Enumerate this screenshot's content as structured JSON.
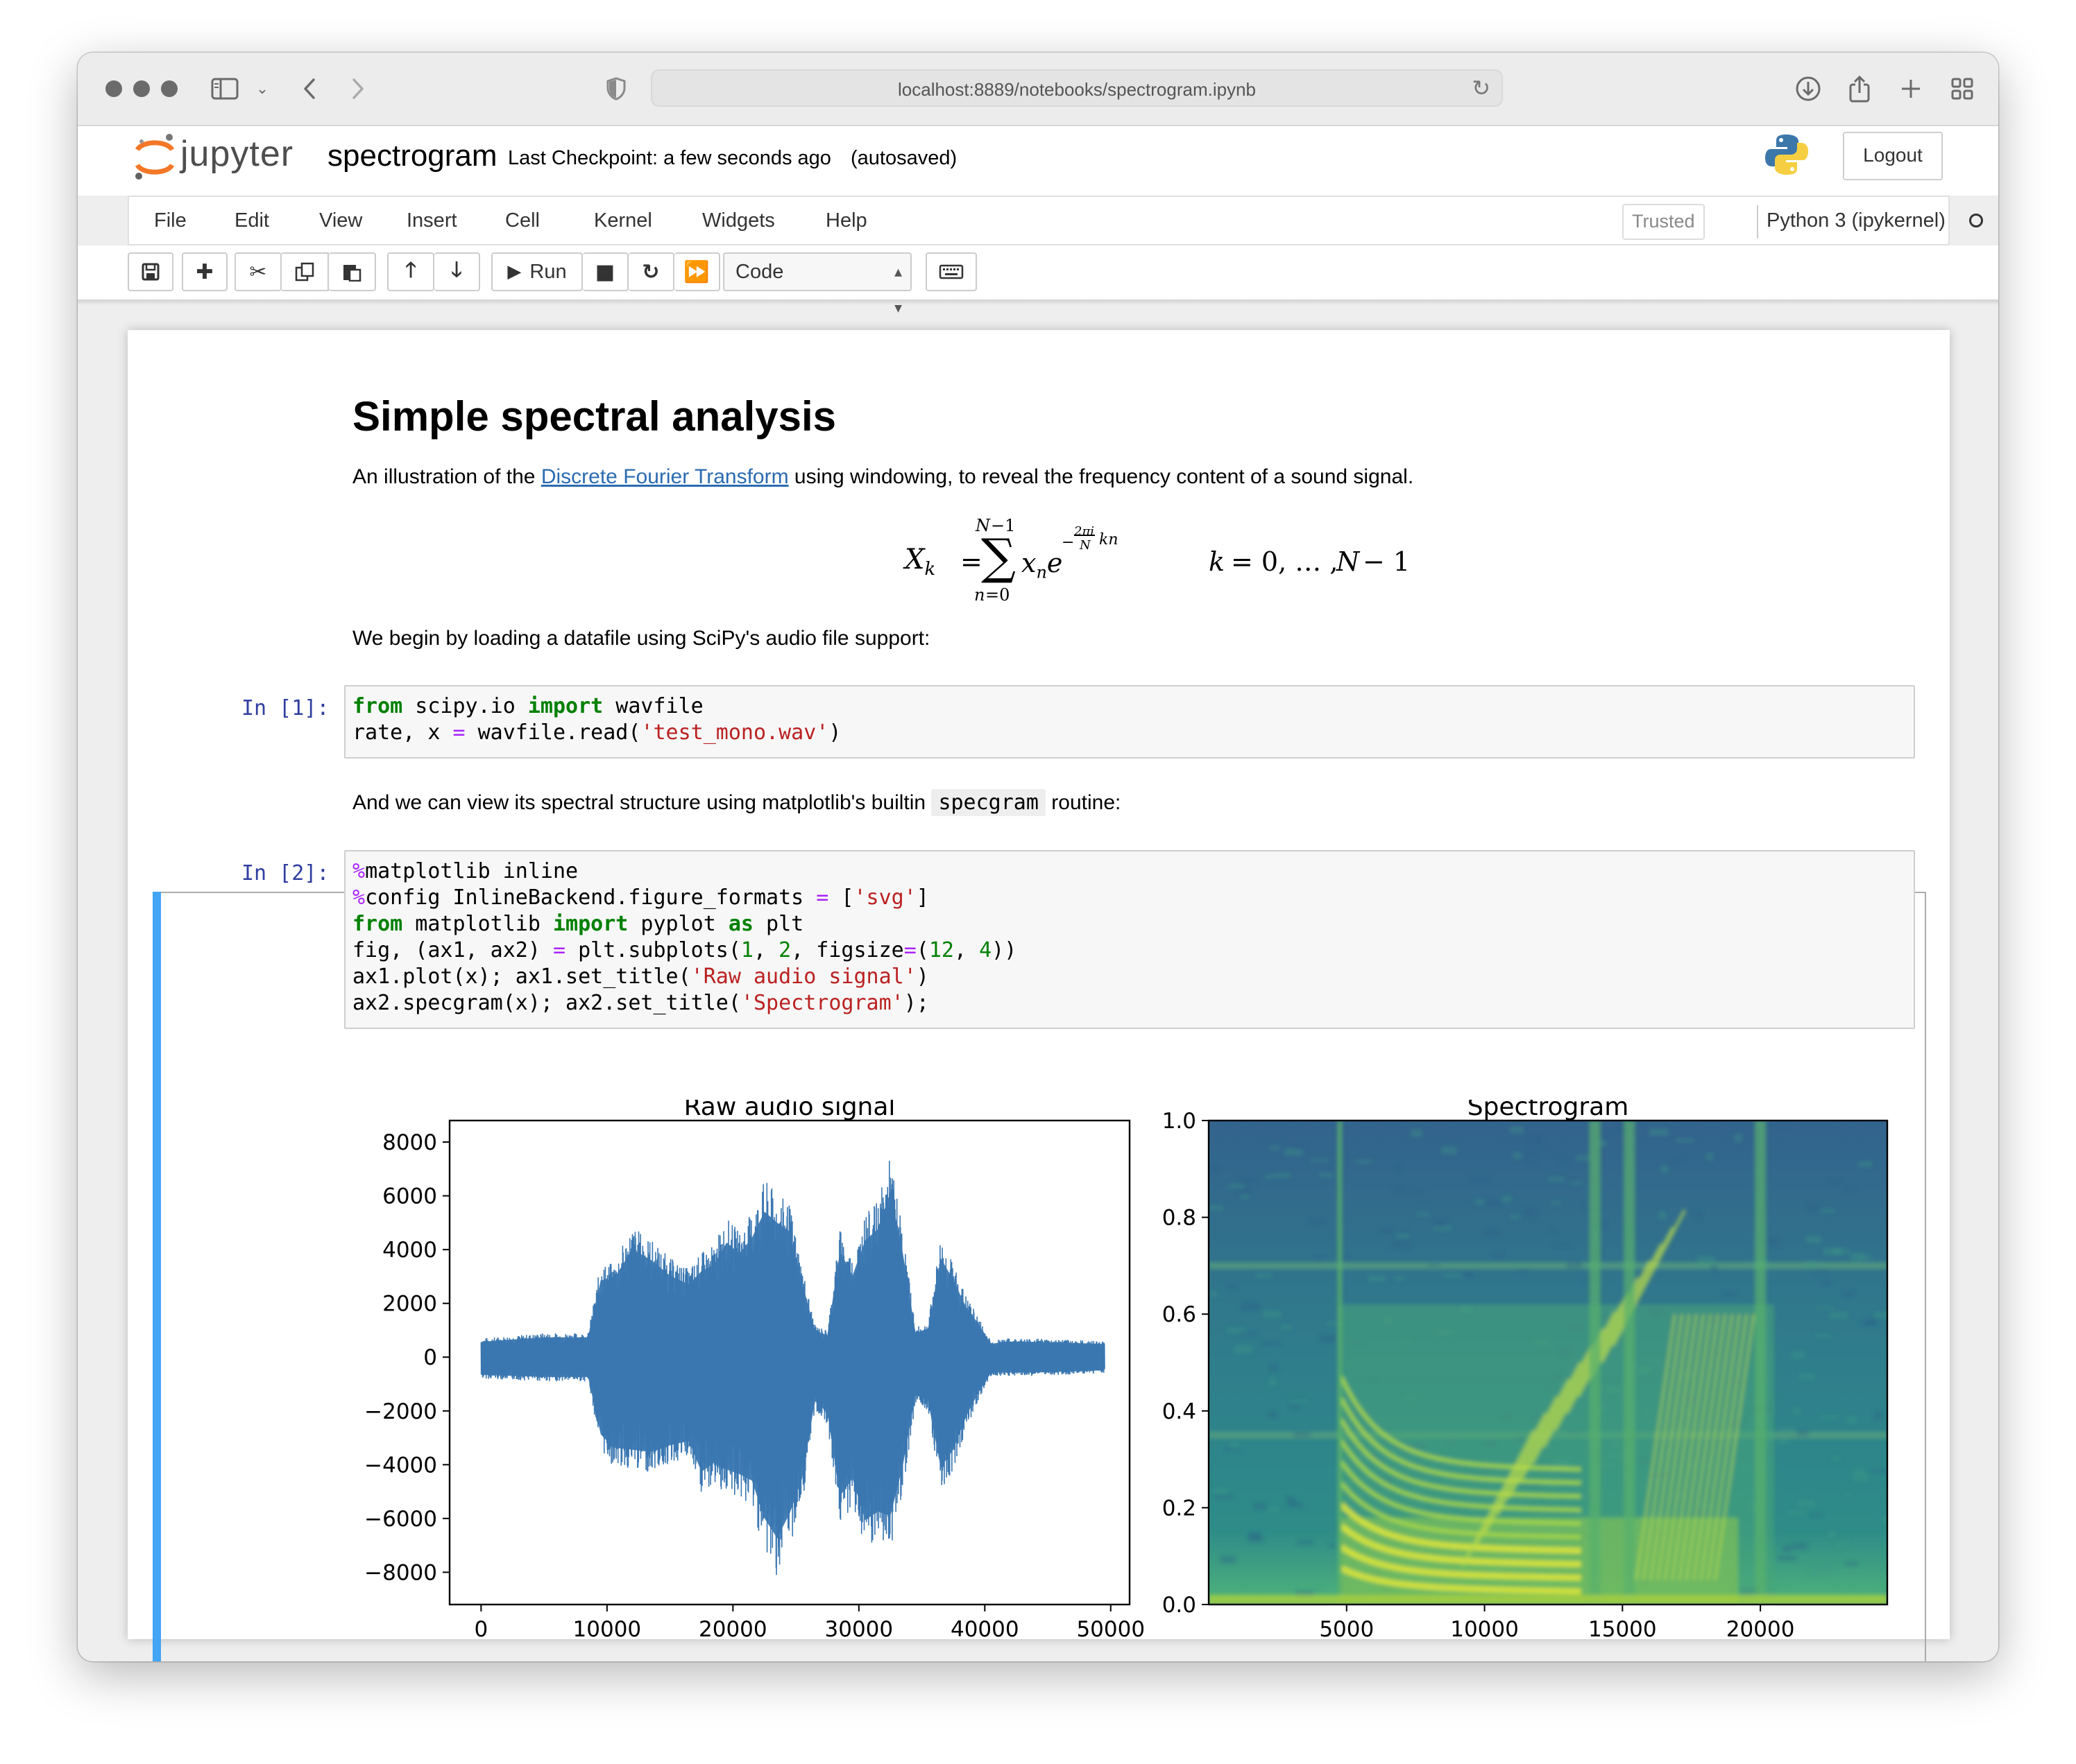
{
  "browser": {
    "url": "localhost:8889/notebooks/spectrogram.ipynb"
  },
  "header": {
    "logo_text": "jupyter",
    "notebook_name": "spectrogram",
    "checkpoint": "Last Checkpoint: a few seconds ago",
    "autosaved": "(autosaved)",
    "logout_label": "Logout"
  },
  "menu": {
    "items": [
      "File",
      "Edit",
      "View",
      "Insert",
      "Cell",
      "Kernel",
      "Widgets",
      "Help"
    ],
    "trusted": "Trusted",
    "kernel": "Python 3 (ipykernel)"
  },
  "toolbar": {
    "run_label": "Run",
    "cell_type": "Code"
  },
  "notebook": {
    "heading": "Simple spectral analysis",
    "intro_before": "An illustration of the ",
    "intro_link": "Discrete Fourier Transform",
    "intro_after": " using windowing, to reveal the frequency content of a sound signal.",
    "load_text": "We begin by loading a datafile using SciPy's audio file support:",
    "view_before": "And we can view its spectral structure using matplotlib's builtin ",
    "view_code": "specgram",
    "view_after": " routine:",
    "prompt1": "In [1]:",
    "prompt2": "In [2]:"
  },
  "chart_data": [
    {
      "type": "line",
      "title": "Raw audio signal",
      "xlabel": "",
      "ylabel": "",
      "xlim": [
        -2500,
        51500
      ],
      "ylim": [
        -9200,
        8800
      ],
      "xticks": [
        0,
        10000,
        20000,
        30000,
        40000,
        50000
      ],
      "yticks": [
        -8000,
        -6000,
        -4000,
        -2000,
        0,
        2000,
        4000,
        6000,
        8000
      ],
      "xtick_labels": [
        "0",
        "10000",
        "20000",
        "30000",
        "40000",
        "50000"
      ],
      "ytick_labels": [
        "−8000",
        "−6000",
        "−4000",
        "−2000",
        "0",
        "2000",
        "4000",
        "6000",
        "8000"
      ],
      "color": "#3a77b1",
      "envelope": {
        "x": [
          0,
          5000,
          8500,
          9500,
          10500,
          12000,
          13500,
          15000,
          16500,
          17500,
          18500,
          19500,
          20500,
          21500,
          22500,
          23500,
          24500,
          25500,
          26500,
          27500,
          28500,
          29500,
          30500,
          31500,
          32500,
          33500,
          34500,
          35500,
          36500,
          37500,
          38500,
          39500,
          40500,
          41500,
          44000,
          49500
        ],
        "upper": [
          700,
          900,
          900,
          3500,
          3500,
          4900,
          4400,
          3700,
          3300,
          3900,
          4200,
          5200,
          4700,
          5400,
          6600,
          6100,
          5700,
          3400,
          1200,
          1000,
          4800,
          3700,
          5300,
          5800,
          7500,
          4700,
          1100,
          1300,
          4500,
          3500,
          2300,
          1500,
          600,
          700,
          700,
          600
        ],
        "lower": [
          -800,
          -900,
          -900,
          -3500,
          -4100,
          -4200,
          -4300,
          -4000,
          -3800,
          -5200,
          -4800,
          -5100,
          -5300,
          -5600,
          -7300,
          -8200,
          -7100,
          -5500,
          -2000,
          -2500,
          -6300,
          -5500,
          -7400,
          -7000,
          -7200,
          -4900,
          -1700,
          -2000,
          -5000,
          -4200,
          -2700,
          -1600,
          -700,
          -700,
          -700,
          -600
        ]
      }
    },
    {
      "type": "heatmap",
      "title": "Spectrogram",
      "xlabel": "",
      "ylabel": "",
      "xlim": [
        0,
        24600
      ],
      "ylim": [
        0,
        1.0
      ],
      "xticks": [
        5000,
        10000,
        15000,
        20000
      ],
      "yticks": [
        0.0,
        0.2,
        0.4,
        0.6,
        0.8,
        1.0
      ],
      "xtick_labels": [
        "5000",
        "10000",
        "15000",
        "20000"
      ],
      "ytick_labels": [
        "0.0",
        "0.2",
        "0.4",
        "0.6",
        "0.8",
        "1.0"
      ],
      "colormap": "viridis"
    }
  ]
}
